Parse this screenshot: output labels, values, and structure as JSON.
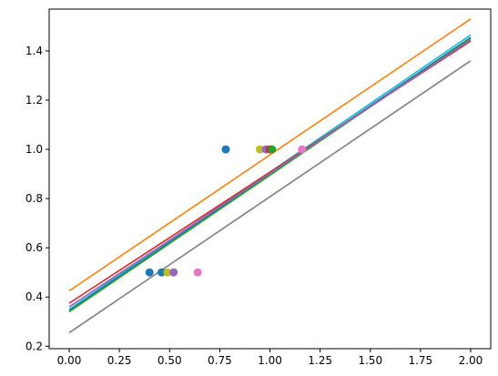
{
  "chart_data": {
    "type": "scatter",
    "title": "",
    "xlabel": "",
    "ylabel": "",
    "xlim": [
      -0.1,
      2.1
    ],
    "ylim": [
      0.19,
      1.57
    ],
    "x_ticks": [
      0.0,
      0.25,
      0.5,
      0.75,
      1.0,
      1.25,
      1.5,
      1.75,
      2.0
    ],
    "x_tick_labels": [
      "0.00",
      "0.25",
      "0.50",
      "0.75",
      "1.00",
      "1.25",
      "1.50",
      "1.75",
      "2.00"
    ],
    "y_ticks": [
      0.2,
      0.4,
      0.6,
      0.8,
      1.0,
      1.2,
      1.4
    ],
    "y_tick_labels": [
      "0.2",
      "0.4",
      "0.6",
      "0.8",
      "1.0",
      "1.2",
      "1.4"
    ],
    "grid": false,
    "legend": "none",
    "lines": [
      {
        "color": "#ff7f0e",
        "x": [
          0,
          2
        ],
        "y": [
          0.425,
          1.53
        ]
      },
      {
        "color": "#17becf",
        "x": [
          0,
          2
        ],
        "y": [
          0.35,
          1.465
        ]
      },
      {
        "color": "#1f77b4",
        "x": [
          0,
          2
        ],
        "y": [
          0.345,
          1.455
        ]
      },
      {
        "color": "#2ca02c",
        "x": [
          0,
          2
        ],
        "y": [
          0.34,
          1.45
        ]
      },
      {
        "color": "#d62728",
        "x": [
          0,
          2
        ],
        "y": [
          0.375,
          1.44
        ]
      },
      {
        "color": "#9467bd",
        "x": [
          0,
          2
        ],
        "y": [
          0.36,
          1.445
        ]
      },
      {
        "color": "#7f7f7f",
        "x": [
          0,
          2
        ],
        "y": [
          0.255,
          1.36
        ]
      }
    ],
    "points": [
      {
        "color": "#1f77b4",
        "x": 0.78,
        "y": 1.0
      },
      {
        "color": "#bcbd22",
        "x": 0.95,
        "y": 1.0
      },
      {
        "color": "#9467bd",
        "x": 0.98,
        "y": 1.0
      },
      {
        "color": "#d62728",
        "x": 1.0,
        "y": 1.0
      },
      {
        "color": "#2ca02c",
        "x": 1.01,
        "y": 1.0
      },
      {
        "color": "#e377c2",
        "x": 1.16,
        "y": 1.0
      },
      {
        "color": "#1f77b4",
        "x": 0.4,
        "y": 0.5
      },
      {
        "color": "#1f77b4",
        "x": 0.46,
        "y": 0.5
      },
      {
        "color": "#bcbd22",
        "x": 0.49,
        "y": 0.5
      },
      {
        "color": "#9467bd",
        "x": 0.52,
        "y": 0.5
      },
      {
        "color": "#e377c2",
        "x": 0.64,
        "y": 0.5
      }
    ]
  }
}
